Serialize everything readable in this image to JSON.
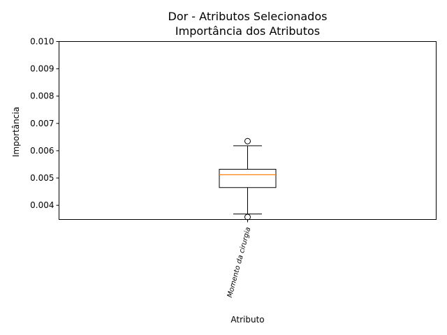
{
  "chart_data": {
    "type": "box",
    "title": "Dor - Atributos Selecionados",
    "subtitle": "Importância dos Atributos",
    "xlabel": "Atributo",
    "ylabel": "Importância",
    "ylim": [
      0.00348,
      0.01
    ],
    "yticks": [
      "0.004",
      "0.005",
      "0.006",
      "0.007",
      "0.008",
      "0.009",
      "0.010"
    ],
    "ytick_values": [
      0.004,
      0.005,
      0.006,
      0.007,
      0.008,
      0.009,
      0.01
    ],
    "categories": [
      "Momento da cirurgia"
    ],
    "boxes": [
      {
        "category": "Momento da cirurgia",
        "whisker_low": 0.00368,
        "q1": 0.00465,
        "median": 0.00512,
        "q3": 0.00532,
        "whisker_high": 0.00618,
        "outliers": [
          0.00635,
          0.00357
        ]
      }
    ],
    "colors": {
      "median": "#ff7f0e",
      "box": "#000000",
      "outlier": "#000000"
    },
    "grid": false
  }
}
